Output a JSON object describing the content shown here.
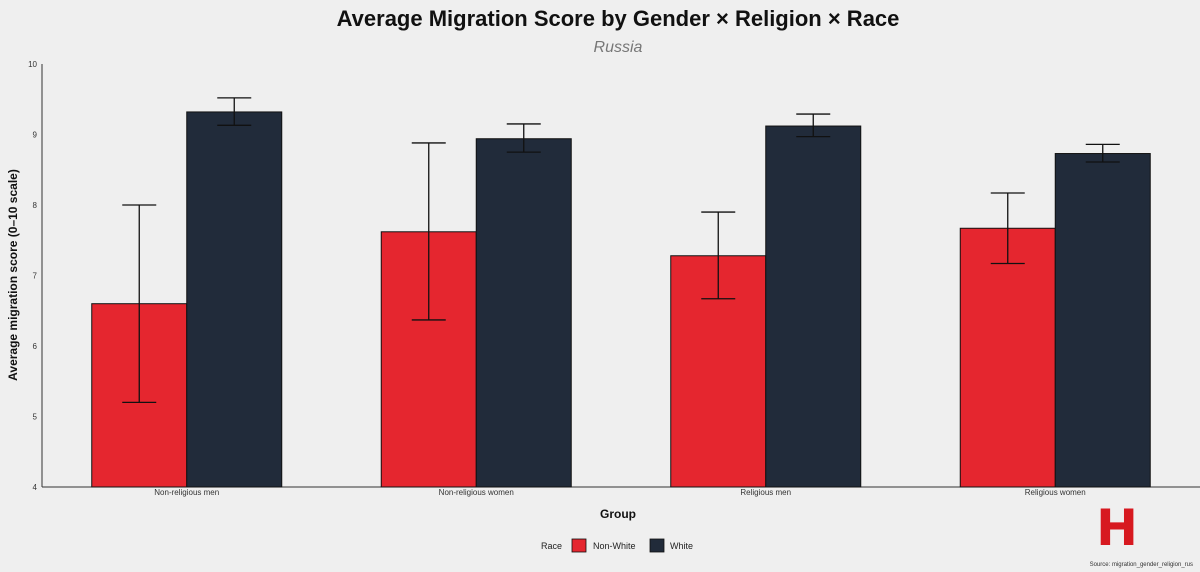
{
  "chart_data": {
    "type": "bar",
    "title": "Average Migration Score by Gender × Religion × Race",
    "subtitle": "Russia",
    "xlabel": "Group",
    "ylabel": "Average migration score (0–10 scale)",
    "ylim": [
      4,
      10
    ],
    "yticks": [
      4,
      5,
      6,
      7,
      8,
      9,
      10
    ],
    "grid": false,
    "categories": [
      "Non-religious men",
      "Non-religious women",
      "Religious men",
      "Religious women"
    ],
    "series": [
      {
        "name": "Non-White",
        "color": "#e5262f",
        "values": [
          6.6,
          7.62,
          7.28,
          7.67
        ],
        "err_low": [
          5.2,
          6.37,
          6.67,
          7.17
        ],
        "err_high": [
          8.0,
          8.88,
          7.9,
          8.17
        ]
      },
      {
        "name": "White",
        "color": "#212b3a",
        "values": [
          9.32,
          8.94,
          9.12,
          8.73
        ],
        "err_low": [
          9.13,
          8.75,
          8.97,
          8.61
        ],
        "err_high": [
          9.52,
          9.15,
          9.29,
          8.86
        ]
      }
    ],
    "legend": {
      "title": "Race",
      "placement": "bottom"
    },
    "source": "Source: migration_gender_religion_rus"
  },
  "logo": {
    "text": "H",
    "color": "#d71920",
    "icon": "h-logo-icon"
  }
}
